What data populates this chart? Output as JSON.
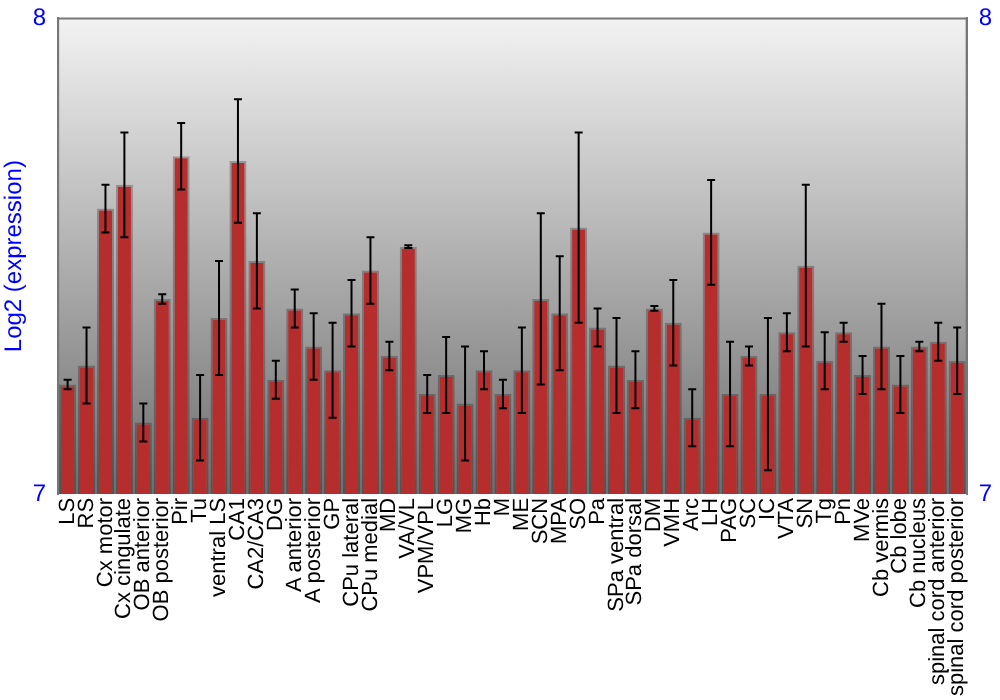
{
  "chart_data": {
    "type": "bar",
    "ylabel": "Log2 (expression)",
    "categories": [
      "LS",
      "RS",
      "Cx motor",
      "Cx cingulate",
      "OB anterior",
      "OB posterior",
      "Pir",
      "Tu",
      "ventral LS",
      "CA1",
      "CA2/CA3",
      "DG",
      "A anterior",
      "A posterior",
      "GP",
      "CPu lateral",
      "CPu medial",
      "MD",
      "VA/VL",
      "VPM/VPL",
      "LG",
      "MG",
      "Hb",
      "M",
      "ME",
      "SCN",
      "MPA",
      "SO",
      "Pa",
      "SPa ventral",
      "SPa dorsal",
      "DM",
      "VMH",
      "Arc",
      "LH",
      "PAG",
      "SC",
      "IC",
      "VTA",
      "SN",
      "Tg",
      "Pn",
      "MVe",
      "Cb vermis",
      "Cb lobe",
      "Cb nucleus",
      "spinal cord anterior",
      "spinal cord posterior"
    ],
    "values": [
      7.23,
      7.27,
      7.6,
      7.65,
      7.15,
      7.41,
      7.71,
      7.16,
      7.37,
      7.7,
      7.49,
      7.24,
      7.39,
      7.31,
      7.26,
      7.38,
      7.47,
      7.29,
      7.52,
      7.21,
      7.25,
      7.19,
      7.26,
      7.21,
      7.26,
      7.41,
      7.38,
      7.56,
      7.35,
      7.27,
      7.24,
      7.39,
      7.36,
      7.16,
      7.55,
      7.21,
      7.29,
      7.21,
      7.34,
      7.48,
      7.28,
      7.34,
      7.25,
      7.31,
      7.23,
      7.31,
      7.32,
      7.28
    ],
    "errors": [
      0.01,
      0.08,
      0.05,
      0.11,
      0.04,
      0.01,
      0.07,
      0.09,
      0.12,
      0.13,
      0.1,
      0.04,
      0.04,
      0.07,
      0.1,
      0.07,
      0.07,
      0.03,
      0.003,
      0.04,
      0.08,
      0.12,
      0.04,
      0.03,
      0.09,
      0.18,
      0.12,
      0.2,
      0.04,
      0.1,
      0.06,
      0.005,
      0.09,
      0.06,
      0.11,
      0.11,
      0.02,
      0.16,
      0.04,
      0.17,
      0.06,
      0.02,
      0.04,
      0.09,
      0.06,
      0.01,
      0.04,
      0.07
    ],
    "color": "#b52d2d",
    "ylim": [
      7,
      8
    ],
    "yticks": [
      7,
      8
    ],
    "y2lim": [
      7,
      8
    ],
    "y2ticks": [
      7,
      8
    ],
    "grid": false,
    "legend": false
  }
}
